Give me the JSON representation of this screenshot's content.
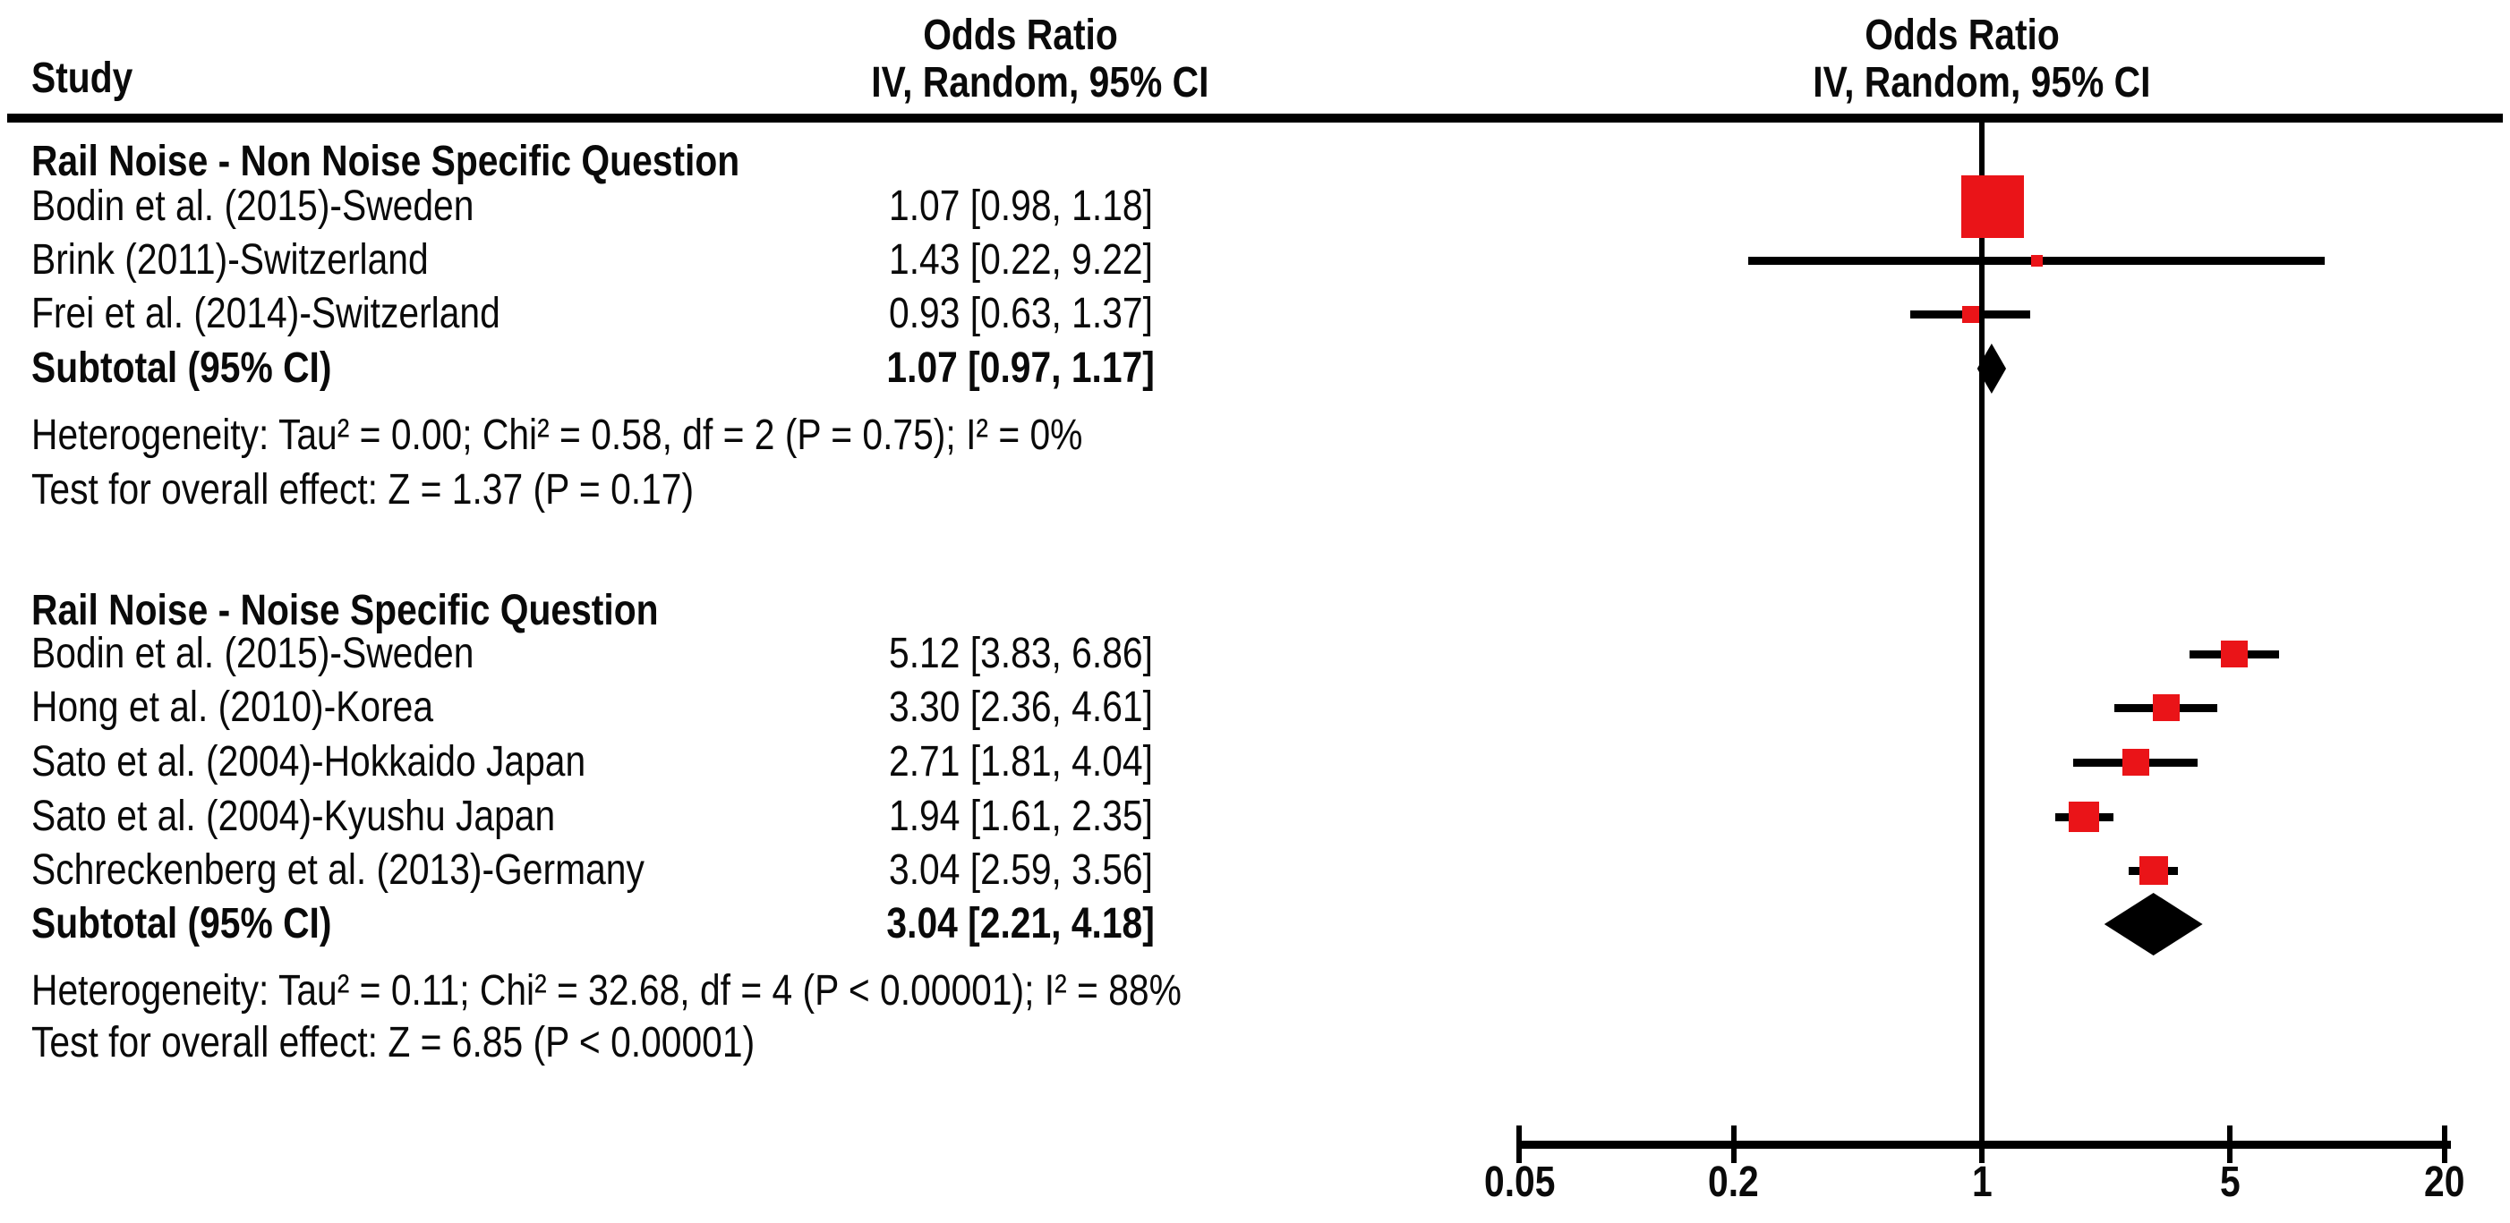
{
  "header": {
    "study_col": "Study",
    "or_col_line1": "Odds Ratio",
    "or_col_line2": "IV, Random, 95% CI",
    "plot_col_line1": "Odds Ratio",
    "plot_col_line2": "IV, Random, 95% CI"
  },
  "colors": {
    "marker_red": "#EA1418",
    "black": "#000000"
  },
  "axis": {
    "ticks": [
      0.05,
      0.2,
      1,
      5,
      20
    ],
    "tick_labels": [
      "0.05",
      "0.2",
      "1",
      "5",
      "20"
    ]
  },
  "chart_data": {
    "type": "forest",
    "effect_measure": "Odds Ratio",
    "model": "IV, Random, 95% CI",
    "x_scale": "log10",
    "x_range": [
      0.05,
      20
    ],
    "null_line": 1,
    "groups": [
      {
        "label": "Rail Noise - Non Noise Specific Question",
        "studies": [
          {
            "label": "Bodin et al. (2015)-Sweden",
            "or_text": "1.07 [0.98, 1.18]",
            "or": 1.07,
            "ci_low": 0.98,
            "ci_high": 1.18,
            "marker_size": 70
          },
          {
            "label": "Brink (2011)-Switzerland",
            "or_text": "1.43 [0.22, 9.22]",
            "or": 1.43,
            "ci_low": 0.22,
            "ci_high": 9.22,
            "marker_size": 13
          },
          {
            "label": "Frei et al. (2014)-Switzerland",
            "or_text": "0.93 [0.63, 1.37]",
            "or": 0.93,
            "ci_low": 0.63,
            "ci_high": 1.37,
            "marker_size": 19
          }
        ],
        "subtotal": {
          "label": "Subtotal (95% CI)",
          "or_text": "1.07 [0.97, 1.17]",
          "or": 1.07,
          "ci_low": 0.97,
          "ci_high": 1.17
        },
        "heterogeneity": "Heterogeneity: Tau² = 0.00; Chi² = 0.58, df = 2 (P = 0.75); I² = 0%",
        "overall_effect": "Test for overall effect: Z = 1.37 (P = 0.17)"
      },
      {
        "label": "Rail Noise - Noise Specific Question",
        "studies": [
          {
            "label": "Bodin et al. (2015)-Sweden",
            "or_text": "5.12 [3.83, 6.86]",
            "or": 5.12,
            "ci_low": 3.83,
            "ci_high": 6.86,
            "marker_size": 30
          },
          {
            "label": "Hong et al. (2010)-Korea",
            "or_text": "3.30 [2.36, 4.61]",
            "or": 3.3,
            "ci_low": 2.36,
            "ci_high": 4.61,
            "marker_size": 30
          },
          {
            "label": "Sato et al. (2004)-Hokkaido Japan",
            "or_text": "2.71 [1.81, 4.04]",
            "or": 2.71,
            "ci_low": 1.81,
            "ci_high": 4.04,
            "marker_size": 30
          },
          {
            "label": "Sato et al. (2004)-Kyushu Japan",
            "or_text": "1.94 [1.61, 2.35]",
            "or": 1.94,
            "ci_low": 1.61,
            "ci_high": 2.35,
            "marker_size": 34
          },
          {
            "label": "Schreckenberg et al. (2013)-Germany",
            "or_text": "3.04 [2.59, 3.56]",
            "or": 3.04,
            "ci_low": 2.59,
            "ci_high": 3.56,
            "marker_size": 32
          }
        ],
        "subtotal": {
          "label": "Subtotal (95% CI)",
          "or_text": "3.04 [2.21, 4.18]",
          "or": 3.04,
          "ci_low": 2.21,
          "ci_high": 4.18
        },
        "heterogeneity": "Heterogeneity: Tau² = 0.11; Chi² = 32.68, df = 4 (P < 0.00001); I² = 88%",
        "overall_effect": "Test for overall effect: Z = 6.85 (P < 0.00001)"
      }
    ]
  }
}
